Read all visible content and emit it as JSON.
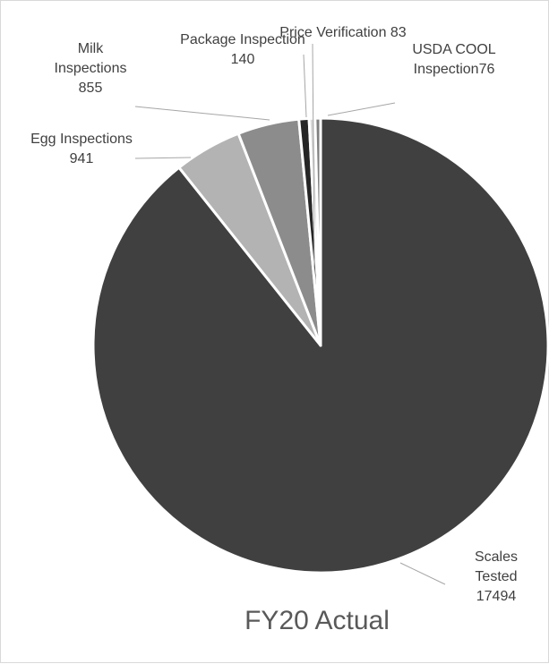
{
  "chart_data": {
    "type": "pie",
    "title": "FY20 Actual",
    "slices": [
      {
        "label_lines": [
          "Scales",
          "Tested",
          "17494"
        ],
        "value": 17494,
        "color": "#404040"
      },
      {
        "label_lines": [
          "Egg Inspections",
          "941"
        ],
        "value": 941,
        "color": "#b3b3b3"
      },
      {
        "label_lines": [
          "Milk",
          "Inspections",
          "855"
        ],
        "value": 855,
        "color": "#8c8c8c"
      },
      {
        "label_lines": [
          "Package Inspection",
          "140"
        ],
        "value": 140,
        "color": "#262626"
      },
      {
        "label_lines": [
          "Price Verification 83"
        ],
        "value": 83,
        "color": "#d9d9d9"
      },
      {
        "label_lines": [
          "USDA COOL",
          "Inspection76"
        ],
        "value": 76,
        "color": "#7f7f7f"
      }
    ],
    "start_angle": "12 o'clock",
    "direction": "clockwise",
    "legend": "none"
  }
}
